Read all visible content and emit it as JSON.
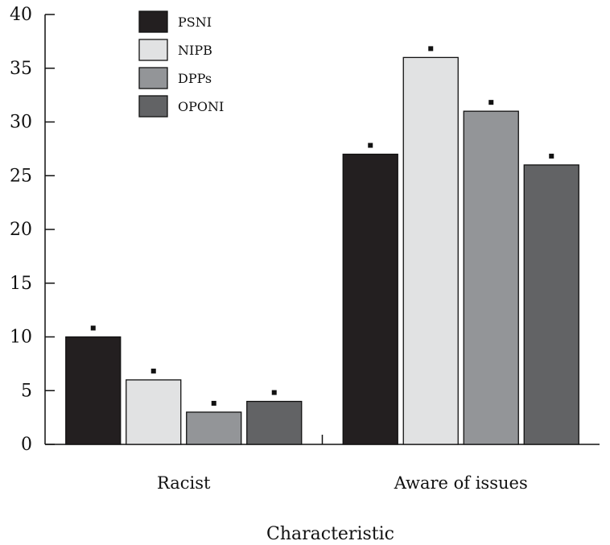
{
  "chart_data": {
    "type": "bar",
    "xlabel": "Characteristic",
    "ylabel": "",
    "ylim": [
      0,
      40
    ],
    "yticks": [
      0,
      5,
      10,
      15,
      20,
      25,
      30,
      35,
      40
    ],
    "categories": [
      "Racist",
      "Aware of issues"
    ],
    "series": [
      {
        "name": "PSNI",
        "color": "#231f20",
        "values": [
          10,
          27
        ]
      },
      {
        "name": "NIPB",
        "color": "#e1e2e3",
        "values": [
          6,
          36
        ]
      },
      {
        "name": "DPPs",
        "color": "#939598",
        "values": [
          3,
          31
        ]
      },
      {
        "name": "OPONI",
        "color": "#626365",
        "values": [
          4,
          26
        ]
      }
    ],
    "error_markers": "small square above each bar",
    "grid": false,
    "legend_position": "top-left"
  }
}
